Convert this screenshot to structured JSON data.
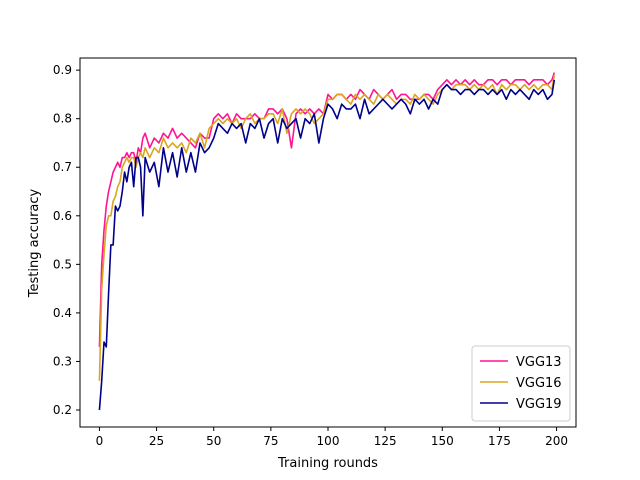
{
  "chart_data": {
    "type": "line",
    "title": "",
    "xlabel": "Training rounds",
    "ylabel": "Testing accuracy",
    "xlim": [
      -8.5,
      208.5
    ],
    "ylim": [
      0.165,
      0.925
    ],
    "xticks": [
      0,
      25,
      50,
      75,
      100,
      125,
      150,
      175,
      200
    ],
    "yticks": [
      0.2,
      0.3,
      0.4,
      0.5,
      0.6,
      0.7,
      0.8,
      0.9
    ],
    "grid": false,
    "legend_position": "lower-right",
    "series": [
      {
        "name": "VGG13",
        "color": "#ff1493",
        "x": [
          0,
          1,
          2,
          3,
          4,
          5,
          6,
          7,
          8,
          9,
          10,
          11,
          12,
          13,
          14,
          15,
          16,
          17,
          18,
          19,
          20,
          22,
          24,
          26,
          28,
          30,
          32,
          34,
          36,
          38,
          40,
          42,
          44,
          46,
          48,
          50,
          52,
          54,
          56,
          58,
          60,
          62,
          64,
          66,
          68,
          70,
          72,
          74,
          76,
          78,
          80,
          82,
          84,
          86,
          88,
          90,
          92,
          94,
          96,
          98,
          100,
          102,
          104,
          106,
          108,
          110,
          112,
          114,
          116,
          118,
          120,
          122,
          124,
          126,
          128,
          130,
          132,
          134,
          136,
          138,
          140,
          142,
          144,
          146,
          148,
          150,
          152,
          154,
          156,
          158,
          160,
          162,
          164,
          166,
          168,
          170,
          172,
          174,
          176,
          178,
          180,
          182,
          184,
          186,
          188,
          190,
          192,
          194,
          196,
          198,
          199
        ],
        "values": [
          0.33,
          0.5,
          0.57,
          0.62,
          0.65,
          0.67,
          0.69,
          0.7,
          0.71,
          0.7,
          0.72,
          0.72,
          0.73,
          0.72,
          0.73,
          0.73,
          0.71,
          0.74,
          0.73,
          0.76,
          0.77,
          0.74,
          0.76,
          0.75,
          0.77,
          0.76,
          0.78,
          0.76,
          0.77,
          0.76,
          0.75,
          0.74,
          0.77,
          0.76,
          0.76,
          0.8,
          0.81,
          0.8,
          0.81,
          0.79,
          0.81,
          0.8,
          0.8,
          0.8,
          0.81,
          0.8,
          0.8,
          0.82,
          0.82,
          0.81,
          0.82,
          0.8,
          0.74,
          0.81,
          0.82,
          0.81,
          0.82,
          0.81,
          0.82,
          0.81,
          0.85,
          0.84,
          0.85,
          0.85,
          0.84,
          0.85,
          0.84,
          0.86,
          0.85,
          0.84,
          0.86,
          0.85,
          0.84,
          0.85,
          0.86,
          0.84,
          0.85,
          0.85,
          0.84,
          0.84,
          0.84,
          0.85,
          0.85,
          0.84,
          0.86,
          0.87,
          0.88,
          0.87,
          0.88,
          0.87,
          0.88,
          0.87,
          0.88,
          0.87,
          0.87,
          0.88,
          0.88,
          0.87,
          0.88,
          0.88,
          0.87,
          0.88,
          0.88,
          0.88,
          0.87,
          0.88,
          0.88,
          0.88,
          0.87,
          0.88,
          0.895
        ]
      },
      {
        "name": "VGG16",
        "color": "#daa520",
        "x": [
          0,
          1,
          2,
          3,
          4,
          5,
          6,
          7,
          8,
          9,
          10,
          11,
          12,
          13,
          14,
          15,
          16,
          17,
          18,
          19,
          20,
          22,
          24,
          26,
          28,
          30,
          32,
          34,
          36,
          38,
          40,
          42,
          44,
          46,
          48,
          50,
          52,
          54,
          56,
          58,
          60,
          62,
          64,
          66,
          68,
          70,
          72,
          74,
          76,
          78,
          80,
          82,
          84,
          86,
          88,
          90,
          92,
          94,
          96,
          98,
          100,
          102,
          104,
          106,
          108,
          110,
          112,
          114,
          116,
          118,
          120,
          122,
          124,
          126,
          128,
          130,
          132,
          134,
          136,
          138,
          140,
          142,
          144,
          146,
          148,
          150,
          152,
          154,
          156,
          158,
          160,
          162,
          164,
          166,
          168,
          170,
          172,
          174,
          176,
          178,
          180,
          182,
          184,
          186,
          188,
          190,
          192,
          194,
          196,
          198,
          199
        ],
        "values": [
          0.26,
          0.45,
          0.52,
          0.58,
          0.6,
          0.6,
          0.63,
          0.64,
          0.66,
          0.67,
          0.7,
          0.71,
          0.72,
          0.71,
          0.72,
          0.72,
          0.7,
          0.72,
          0.73,
          0.72,
          0.74,
          0.72,
          0.74,
          0.73,
          0.76,
          0.74,
          0.75,
          0.74,
          0.75,
          0.73,
          0.76,
          0.75,
          0.77,
          0.74,
          0.78,
          0.79,
          0.8,
          0.79,
          0.8,
          0.79,
          0.8,
          0.78,
          0.8,
          0.81,
          0.79,
          0.8,
          0.8,
          0.81,
          0.81,
          0.79,
          0.82,
          0.77,
          0.81,
          0.82,
          0.81,
          0.82,
          0.81,
          0.79,
          0.8,
          0.81,
          0.84,
          0.84,
          0.85,
          0.85,
          0.84,
          0.83,
          0.85,
          0.84,
          0.85,
          0.84,
          0.83,
          0.85,
          0.84,
          0.85,
          0.84,
          0.83,
          0.84,
          0.84,
          0.83,
          0.85,
          0.84,
          0.85,
          0.84,
          0.83,
          0.85,
          0.86,
          0.87,
          0.86,
          0.87,
          0.87,
          0.87,
          0.86,
          0.87,
          0.86,
          0.87,
          0.86,
          0.87,
          0.85,
          0.87,
          0.86,
          0.87,
          0.87,
          0.86,
          0.87,
          0.86,
          0.87,
          0.86,
          0.87,
          0.87,
          0.86,
          0.89
        ]
      },
      {
        "name": "VGG19",
        "color": "#00008b",
        "x": [
          0,
          1,
          2,
          3,
          4,
          5,
          6,
          7,
          8,
          9,
          10,
          11,
          12,
          13,
          14,
          15,
          16,
          17,
          18,
          19,
          20,
          22,
          24,
          26,
          28,
          30,
          32,
          34,
          36,
          38,
          40,
          42,
          44,
          46,
          48,
          50,
          52,
          54,
          56,
          58,
          60,
          62,
          64,
          66,
          68,
          70,
          72,
          74,
          76,
          78,
          80,
          82,
          84,
          86,
          88,
          90,
          92,
          94,
          96,
          98,
          100,
          102,
          104,
          106,
          108,
          110,
          112,
          114,
          116,
          118,
          120,
          122,
          124,
          126,
          128,
          130,
          132,
          134,
          136,
          138,
          140,
          142,
          144,
          146,
          148,
          150,
          152,
          154,
          156,
          158,
          160,
          162,
          164,
          166,
          168,
          170,
          172,
          174,
          176,
          178,
          180,
          182,
          184,
          186,
          188,
          190,
          192,
          194,
          196,
          198,
          199
        ],
        "values": [
          0.2,
          0.26,
          0.34,
          0.33,
          0.44,
          0.54,
          0.54,
          0.62,
          0.61,
          0.62,
          0.65,
          0.69,
          0.67,
          0.7,
          0.71,
          0.66,
          0.72,
          0.72,
          0.7,
          0.6,
          0.72,
          0.69,
          0.71,
          0.66,
          0.74,
          0.69,
          0.73,
          0.68,
          0.74,
          0.69,
          0.73,
          0.69,
          0.75,
          0.73,
          0.74,
          0.76,
          0.79,
          0.78,
          0.77,
          0.79,
          0.78,
          0.79,
          0.75,
          0.79,
          0.78,
          0.8,
          0.76,
          0.79,
          0.8,
          0.75,
          0.8,
          0.78,
          0.79,
          0.8,
          0.76,
          0.8,
          0.79,
          0.81,
          0.75,
          0.8,
          0.83,
          0.82,
          0.8,
          0.83,
          0.82,
          0.82,
          0.83,
          0.8,
          0.84,
          0.81,
          0.82,
          0.83,
          0.84,
          0.83,
          0.82,
          0.83,
          0.84,
          0.83,
          0.81,
          0.84,
          0.83,
          0.84,
          0.82,
          0.84,
          0.83,
          0.86,
          0.87,
          0.86,
          0.86,
          0.85,
          0.86,
          0.86,
          0.85,
          0.86,
          0.86,
          0.85,
          0.86,
          0.85,
          0.86,
          0.84,
          0.86,
          0.85,
          0.86,
          0.85,
          0.84,
          0.86,
          0.85,
          0.86,
          0.84,
          0.85,
          0.88
        ]
      }
    ]
  }
}
